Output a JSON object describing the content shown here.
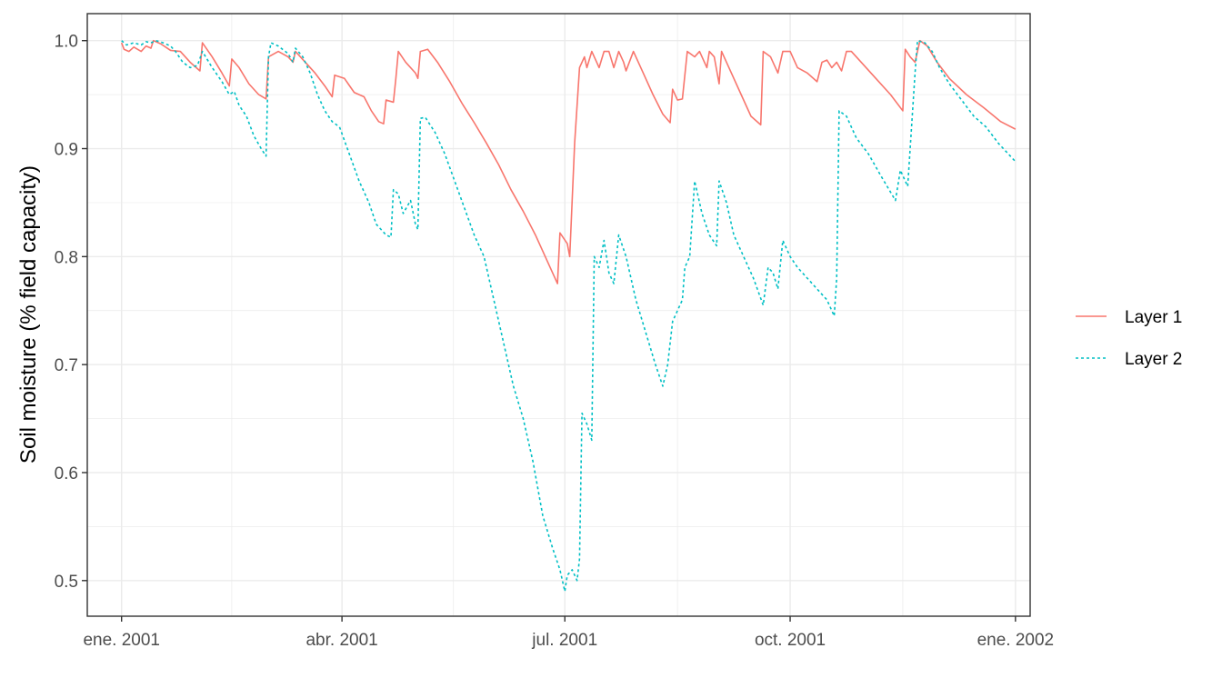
{
  "chart_data": {
    "type": "line",
    "title": "",
    "xlabel": "",
    "ylabel": "Soil moisture (% field capacity)",
    "x_axis": {
      "type": "date",
      "range": [
        "2000-12-18",
        "2002-01-07"
      ],
      "ticks": [
        {
          "date": "2001-01-01",
          "label": "ene. 2001"
        },
        {
          "date": "2001-04-01",
          "label": "abr. 2001"
        },
        {
          "date": "2001-07-01",
          "label": "jul. 2001"
        },
        {
          "date": "2001-10-01",
          "label": "oct. 2001"
        },
        {
          "date": "2002-01-01",
          "label": "ene. 2002"
        }
      ]
    },
    "y_axis": {
      "range": [
        0.467,
        1.025
      ],
      "ticks": [
        0.5,
        0.6,
        0.7,
        0.8,
        0.9,
        1.0
      ],
      "tick_labels": [
        "0.5",
        "0.6",
        "0.7",
        "0.8",
        "0.9",
        "1.0"
      ]
    },
    "grid": true,
    "legend_position": "right",
    "series": [
      {
        "name": "Layer 1",
        "color": "#F8766D",
        "line_style": "solid",
        "points": [
          [
            "2001-01-01",
            0.998
          ],
          [
            "2001-01-02",
            0.992
          ],
          [
            "2001-01-04",
            0.99
          ],
          [
            "2001-01-06",
            0.994
          ],
          [
            "2001-01-09",
            0.99
          ],
          [
            "2001-01-11",
            0.995
          ],
          [
            "2001-01-13",
            0.993
          ],
          [
            "2001-01-14",
            1.0
          ],
          [
            "2001-01-17",
            0.997
          ],
          [
            "2001-01-19",
            0.994
          ],
          [
            "2001-01-21",
            0.991
          ],
          [
            "2001-01-25",
            0.99
          ],
          [
            "2001-01-29",
            0.98
          ],
          [
            "2001-02-02",
            0.972
          ],
          [
            "2001-02-03",
            0.998
          ],
          [
            "2001-02-07",
            0.985
          ],
          [
            "2001-02-11",
            0.97
          ],
          [
            "2001-02-14",
            0.958
          ],
          [
            "2001-02-15",
            0.983
          ],
          [
            "2001-02-18",
            0.975
          ],
          [
            "2001-02-22",
            0.96
          ],
          [
            "2001-02-26",
            0.95
          ],
          [
            "2001-03-01",
            0.946
          ],
          [
            "2001-03-02",
            0.985
          ],
          [
            "2001-03-06",
            0.99
          ],
          [
            "2001-03-10",
            0.985
          ],
          [
            "2001-03-12",
            0.98
          ],
          [
            "2001-03-13",
            0.99
          ],
          [
            "2001-03-17",
            0.98
          ],
          [
            "2001-03-21",
            0.97
          ],
          [
            "2001-03-25",
            0.958
          ],
          [
            "2001-03-28",
            0.948
          ],
          [
            "2001-03-29",
            0.968
          ],
          [
            "2001-04-02",
            0.965
          ],
          [
            "2001-04-06",
            0.952
          ],
          [
            "2001-04-10",
            0.948
          ],
          [
            "2001-04-13",
            0.935
          ],
          [
            "2001-04-16",
            0.925
          ],
          [
            "2001-04-18",
            0.923
          ],
          [
            "2001-04-19",
            0.945
          ],
          [
            "2001-04-22",
            0.943
          ],
          [
            "2001-04-23",
            0.965
          ],
          [
            "2001-04-24",
            0.99
          ],
          [
            "2001-04-27",
            0.98
          ],
          [
            "2001-05-01",
            0.97
          ],
          [
            "2001-05-02",
            0.965
          ],
          [
            "2001-05-03",
            0.99
          ],
          [
            "2001-05-06",
            0.992
          ],
          [
            "2001-05-10",
            0.98
          ],
          [
            "2001-05-15",
            0.962
          ],
          [
            "2001-05-20",
            0.942
          ],
          [
            "2001-05-25",
            0.924
          ],
          [
            "2001-05-30",
            0.905
          ],
          [
            "2001-06-04",
            0.885
          ],
          [
            "2001-06-09",
            0.862
          ],
          [
            "2001-06-14",
            0.842
          ],
          [
            "2001-06-19",
            0.82
          ],
          [
            "2001-06-24",
            0.795
          ],
          [
            "2001-06-28",
            0.775
          ],
          [
            "2001-06-29",
            0.822
          ],
          [
            "2001-07-02",
            0.812
          ],
          [
            "2001-07-03",
            0.8
          ],
          [
            "2001-07-05",
            0.905
          ],
          [
            "2001-07-07",
            0.975
          ],
          [
            "2001-07-09",
            0.985
          ],
          [
            "2001-07-10",
            0.975
          ],
          [
            "2001-07-12",
            0.99
          ],
          [
            "2001-07-14",
            0.98
          ],
          [
            "2001-07-15",
            0.975
          ],
          [
            "2001-07-17",
            0.99
          ],
          [
            "2001-07-19",
            0.99
          ],
          [
            "2001-07-21",
            0.975
          ],
          [
            "2001-07-23",
            0.99
          ],
          [
            "2001-07-25",
            0.98
          ],
          [
            "2001-07-26",
            0.972
          ],
          [
            "2001-07-29",
            0.99
          ],
          [
            "2001-08-02",
            0.97
          ],
          [
            "2001-08-06",
            0.95
          ],
          [
            "2001-08-10",
            0.932
          ],
          [
            "2001-08-13",
            0.924
          ],
          [
            "2001-08-14",
            0.955
          ],
          [
            "2001-08-16",
            0.945
          ],
          [
            "2001-08-18",
            0.946
          ],
          [
            "2001-08-20",
            0.99
          ],
          [
            "2001-08-23",
            0.985
          ],
          [
            "2001-08-25",
            0.99
          ],
          [
            "2001-08-28",
            0.975
          ],
          [
            "2001-08-29",
            0.99
          ],
          [
            "2001-08-31",
            0.985
          ],
          [
            "2001-09-02",
            0.96
          ],
          [
            "2001-09-03",
            0.99
          ],
          [
            "2001-09-07",
            0.97
          ],
          [
            "2001-09-11",
            0.95
          ],
          [
            "2001-09-15",
            0.93
          ],
          [
            "2001-09-19",
            0.922
          ],
          [
            "2001-09-20",
            0.99
          ],
          [
            "2001-09-23",
            0.985
          ],
          [
            "2001-09-26",
            0.97
          ],
          [
            "2001-09-28",
            0.99
          ],
          [
            "2001-10-01",
            0.99
          ],
          [
            "2001-10-04",
            0.975
          ],
          [
            "2001-10-08",
            0.97
          ],
          [
            "2001-10-12",
            0.962
          ],
          [
            "2001-10-14",
            0.98
          ],
          [
            "2001-10-16",
            0.982
          ],
          [
            "2001-10-18",
            0.975
          ],
          [
            "2001-10-20",
            0.98
          ],
          [
            "2001-10-22",
            0.972
          ],
          [
            "2001-10-24",
            0.99
          ],
          [
            "2001-10-26",
            0.99
          ],
          [
            "2001-10-30",
            0.98
          ],
          [
            "2001-11-05",
            0.965
          ],
          [
            "2001-11-11",
            0.95
          ],
          [
            "2001-11-16",
            0.935
          ],
          [
            "2001-11-17",
            0.992
          ],
          [
            "2001-11-19",
            0.985
          ],
          [
            "2001-11-21",
            0.98
          ],
          [
            "2001-11-22",
            0.99
          ],
          [
            "2001-11-23",
            1.0
          ],
          [
            "2001-11-26",
            0.995
          ],
          [
            "2001-11-30",
            0.98
          ],
          [
            "2001-12-05",
            0.965
          ],
          [
            "2001-12-12",
            0.95
          ],
          [
            "2001-12-19",
            0.938
          ],
          [
            "2001-12-26",
            0.925
          ],
          [
            "2002-01-01",
            0.918
          ]
        ]
      },
      {
        "name": "Layer 2",
        "color": "#00BFC4",
        "line_style": "dashed",
        "points": [
          [
            "2001-01-01",
            1.0
          ],
          [
            "2001-01-03",
            0.996
          ],
          [
            "2001-01-06",
            0.998
          ],
          [
            "2001-01-09",
            0.996
          ],
          [
            "2001-01-11",
            0.999
          ],
          [
            "2001-01-13",
            0.998
          ],
          [
            "2001-01-15",
            1.0
          ],
          [
            "2001-01-18",
            0.998
          ],
          [
            "2001-01-21",
            0.995
          ],
          [
            "2001-01-23",
            0.99
          ],
          [
            "2001-01-26",
            0.98
          ],
          [
            "2001-01-29",
            0.975
          ],
          [
            "2001-02-01",
            0.977
          ],
          [
            "2001-02-03",
            0.99
          ],
          [
            "2001-02-07",
            0.975
          ],
          [
            "2001-02-11",
            0.962
          ],
          [
            "2001-02-14",
            0.95
          ],
          [
            "2001-02-16",
            0.953
          ],
          [
            "2001-02-18",
            0.94
          ],
          [
            "2001-02-21",
            0.93
          ],
          [
            "2001-02-24",
            0.912
          ],
          [
            "2001-02-27",
            0.9
          ],
          [
            "2001-03-01",
            0.893
          ],
          [
            "2001-03-02",
            0.985
          ],
          [
            "2001-03-03",
            0.998
          ],
          [
            "2001-03-06",
            0.995
          ],
          [
            "2001-03-10",
            0.988
          ],
          [
            "2001-03-12",
            0.98
          ],
          [
            "2001-03-13",
            0.993
          ],
          [
            "2001-03-16",
            0.985
          ],
          [
            "2001-03-19",
            0.97
          ],
          [
            "2001-03-22",
            0.95
          ],
          [
            "2001-03-25",
            0.935
          ],
          [
            "2001-03-28",
            0.925
          ],
          [
            "2001-03-31",
            0.92
          ],
          [
            "2001-04-04",
            0.895
          ],
          [
            "2001-04-08",
            0.87
          ],
          [
            "2001-04-12",
            0.85
          ],
          [
            "2001-04-15",
            0.83
          ],
          [
            "2001-04-19",
            0.82
          ],
          [
            "2001-04-21",
            0.818
          ],
          [
            "2001-04-22",
            0.862
          ],
          [
            "2001-04-24",
            0.858
          ],
          [
            "2001-04-26",
            0.84
          ],
          [
            "2001-04-29",
            0.852
          ],
          [
            "2001-05-01",
            0.83
          ],
          [
            "2001-05-02",
            0.825
          ],
          [
            "2001-05-03",
            0.928
          ],
          [
            "2001-05-05",
            0.929
          ],
          [
            "2001-05-09",
            0.915
          ],
          [
            "2001-05-13",
            0.895
          ],
          [
            "2001-05-17",
            0.87
          ],
          [
            "2001-05-21",
            0.845
          ],
          [
            "2001-05-25",
            0.82
          ],
          [
            "2001-05-29",
            0.8
          ],
          [
            "2001-06-02",
            0.76
          ],
          [
            "2001-06-06",
            0.72
          ],
          [
            "2001-06-10",
            0.68
          ],
          [
            "2001-06-14",
            0.65
          ],
          [
            "2001-06-18",
            0.61
          ],
          [
            "2001-06-22",
            0.56
          ],
          [
            "2001-06-26",
            0.53
          ],
          [
            "2001-06-29",
            0.51
          ],
          [
            "2001-07-01",
            0.49
          ],
          [
            "2001-07-02",
            0.505
          ],
          [
            "2001-07-04",
            0.51
          ],
          [
            "2001-07-06",
            0.5
          ],
          [
            "2001-07-07",
            0.52
          ],
          [
            "2001-07-08",
            0.655
          ],
          [
            "2001-07-10",
            0.645
          ],
          [
            "2001-07-12",
            0.63
          ],
          [
            "2001-07-13",
            0.8
          ],
          [
            "2001-07-15",
            0.79
          ],
          [
            "2001-07-17",
            0.815
          ],
          [
            "2001-07-19",
            0.785
          ],
          [
            "2001-07-21",
            0.775
          ],
          [
            "2001-07-23",
            0.82
          ],
          [
            "2001-07-26",
            0.8
          ],
          [
            "2001-07-30",
            0.76
          ],
          [
            "2001-08-03",
            0.73
          ],
          [
            "2001-08-07",
            0.7
          ],
          [
            "2001-08-10",
            0.68
          ],
          [
            "2001-08-12",
            0.7
          ],
          [
            "2001-08-14",
            0.74
          ],
          [
            "2001-08-16",
            0.75
          ],
          [
            "2001-08-18",
            0.76
          ],
          [
            "2001-08-19",
            0.79
          ],
          [
            "2001-08-21",
            0.8
          ],
          [
            "2001-08-23",
            0.87
          ],
          [
            "2001-08-26",
            0.84
          ],
          [
            "2001-08-29",
            0.82
          ],
          [
            "2001-09-01",
            0.81
          ],
          [
            "2001-09-02",
            0.87
          ],
          [
            "2001-09-05",
            0.85
          ],
          [
            "2001-09-08",
            0.82
          ],
          [
            "2001-09-12",
            0.8
          ],
          [
            "2001-09-16",
            0.78
          ],
          [
            "2001-09-20",
            0.755
          ],
          [
            "2001-09-22",
            0.79
          ],
          [
            "2001-09-24",
            0.785
          ],
          [
            "2001-09-26",
            0.77
          ],
          [
            "2001-09-28",
            0.815
          ],
          [
            "2001-10-01",
            0.8
          ],
          [
            "2001-10-04",
            0.79
          ],
          [
            "2001-10-08",
            0.78
          ],
          [
            "2001-10-12",
            0.77
          ],
          [
            "2001-10-16",
            0.76
          ],
          [
            "2001-10-19",
            0.745
          ],
          [
            "2001-10-20",
            0.78
          ],
          [
            "2001-10-21",
            0.935
          ],
          [
            "2001-10-24",
            0.93
          ],
          [
            "2001-10-28",
            0.91
          ],
          [
            "2001-11-02",
            0.895
          ],
          [
            "2001-11-07",
            0.875
          ],
          [
            "2001-11-13",
            0.852
          ],
          [
            "2001-11-15",
            0.88
          ],
          [
            "2001-11-18",
            0.865
          ],
          [
            "2001-11-21",
            0.97
          ],
          [
            "2001-11-22",
            1.0
          ],
          [
            "2001-11-25",
            0.998
          ],
          [
            "2001-11-28",
            0.99
          ],
          [
            "2001-12-01",
            0.975
          ],
          [
            "2001-12-05",
            0.96
          ],
          [
            "2001-12-10",
            0.945
          ],
          [
            "2001-12-15",
            0.93
          ],
          [
            "2001-12-20",
            0.92
          ],
          [
            "2001-12-25",
            0.905
          ],
          [
            "2002-01-01",
            0.888
          ]
        ]
      }
    ]
  }
}
